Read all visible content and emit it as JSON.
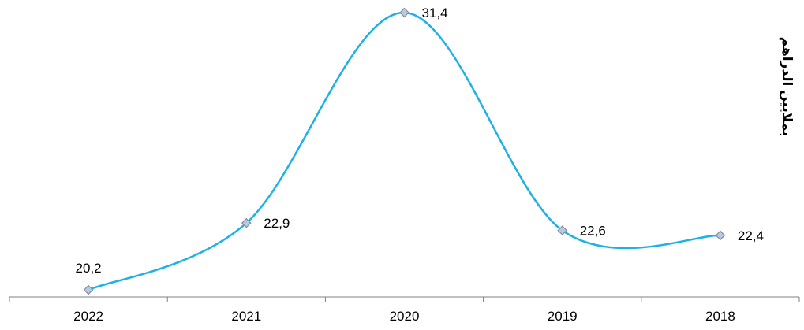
{
  "chart_data": {
    "type": "line",
    "title": "",
    "xlabel": "",
    "ylabel": "بملايين الدراهم",
    "categories": [
      "2022",
      "2021",
      "2020",
      "2019",
      "2018"
    ],
    "series": [
      {
        "values": [
          20.2,
          22.9,
          31.4,
          22.6,
          22.4
        ],
        "data_labels": [
          "20,2",
          "22,9",
          "31,4",
          "22,6",
          "22,4"
        ]
      }
    ],
    "smoothed": true,
    "markers": "diamond",
    "ylim": [
      20.2,
      31.4
    ],
    "grid": false,
    "legend": "none",
    "colors": {
      "line": "#1fb0e6",
      "marker_fill": "#b9c9dd",
      "marker_stroke": "#7d8fa6",
      "axis": "#808080"
    }
  }
}
